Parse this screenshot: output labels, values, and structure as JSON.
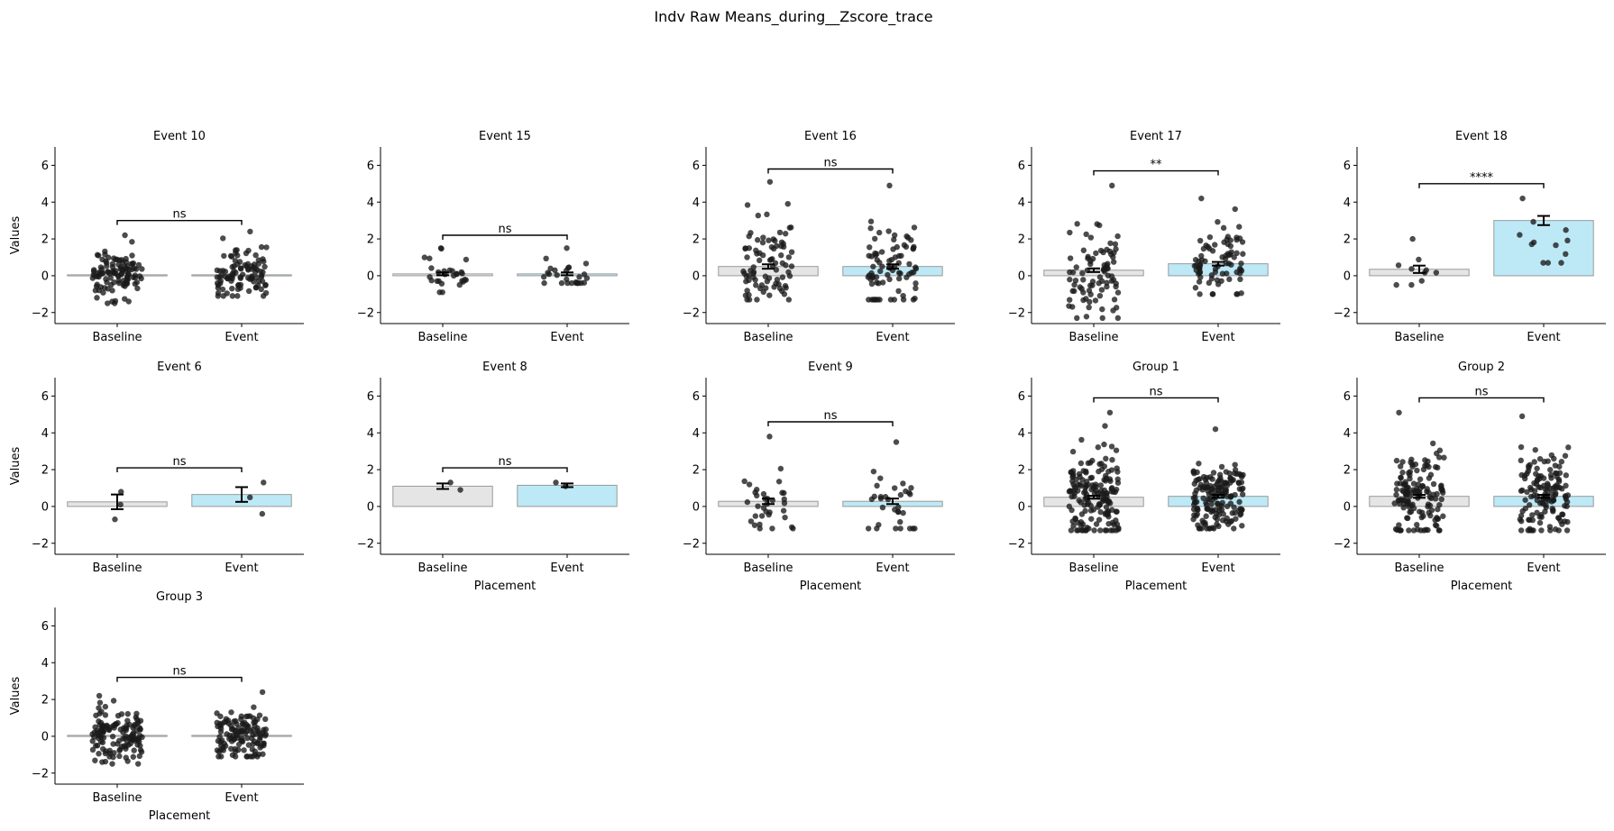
{
  "figure": {
    "title": "Indv Raw Means_during__Zscore_trace"
  },
  "colors": {
    "baseline_bar": "#e5e5e5",
    "event_bar": "#bde9f6",
    "bar_edge": "#9a9a9a",
    "points": "#1a1a1a"
  },
  "chart_data": {
    "type": "bar",
    "categories": [
      "Baseline",
      "Event"
    ],
    "xlabel": "Placement",
    "ylabel": "Values",
    "ylim": [
      -2.6,
      7.0
    ],
    "yticks": [
      -2,
      0,
      2,
      4,
      6
    ],
    "panels": [
      {
        "title": "Event 10",
        "means": [
          0.05,
          0.05
        ],
        "sem": [
          0.05,
          0.05
        ],
        "sig": "ns",
        "bracket_y": 3.0,
        "n": [
          110,
          100
        ],
        "spread": [
          [
            -1.5,
            2.2
          ],
          [
            -1.1,
            2.4
          ]
        ],
        "ylabel": "Values",
        "xlabel": ""
      },
      {
        "title": "Event 15",
        "means": [
          0.1,
          0.1
        ],
        "sem": [
          0.08,
          0.08
        ],
        "sig": "ns",
        "bracket_y": 2.2,
        "n": [
          28,
          26
        ],
        "spread": [
          [
            -0.9,
            1.5
          ],
          [
            -0.4,
            1.5
          ]
        ],
        "ylabel": "",
        "xlabel": ""
      },
      {
        "title": "Event 16",
        "means": [
          0.5,
          0.5
        ],
        "sem": [
          0.12,
          0.12
        ],
        "sig": "ns",
        "bracket_y": 5.8,
        "n": [
          85,
          80
        ],
        "spread": [
          [
            -1.3,
            5.1
          ],
          [
            -1.3,
            4.9
          ]
        ],
        "ylabel": "",
        "xlabel": ""
      },
      {
        "title": "Event 17",
        "means": [
          0.3,
          0.65
        ],
        "sem": [
          0.1,
          0.1
        ],
        "sig": "**",
        "bracket_y": 5.7,
        "n": [
          85,
          80
        ],
        "spread": [
          [
            -2.3,
            4.9
          ],
          [
            -1.0,
            4.2
          ]
        ],
        "ylabel": "",
        "xlabel": ""
      },
      {
        "title": "Event 18",
        "means": [
          0.35,
          3.0
        ],
        "sem": [
          0.2,
          0.25
        ],
        "sig": "****",
        "bracket_y": 5.0,
        "n": [
          10,
          12
        ],
        "spread": [
          [
            -0.5,
            2.0
          ],
          [
            0.7,
            4.2
          ]
        ],
        "ylabel": "",
        "xlabel": ""
      },
      {
        "title": "Event 6",
        "means": [
          0.25,
          0.65
        ],
        "sem": [
          0.4,
          0.4
        ],
        "sig": "ns",
        "bracket_y": 2.1,
        "n": [
          3,
          3
        ],
        "spread": [
          [
            -0.7,
            0.8
          ],
          [
            -0.4,
            1.3
          ]
        ],
        "ylabel": "Values",
        "xlabel": ""
      },
      {
        "title": "Event 8",
        "means": [
          1.1,
          1.15
        ],
        "sem": [
          0.15,
          0.1
        ],
        "sig": "ns",
        "bracket_y": 2.1,
        "n": [
          2,
          2
        ],
        "spread": [
          [
            0.9,
            1.3
          ],
          [
            1.1,
            1.3
          ]
        ],
        "ylabel": "",
        "xlabel": "Placement"
      },
      {
        "title": "Event 9",
        "means": [
          0.28,
          0.28
        ],
        "sem": [
          0.15,
          0.15
        ],
        "sig": "ns",
        "bracket_y": 4.6,
        "n": [
          34,
          32
        ],
        "spread": [
          [
            -1.2,
            3.8
          ],
          [
            -1.2,
            3.5
          ]
        ],
        "ylabel": "",
        "xlabel": "Placement"
      },
      {
        "title": "Group 1",
        "means": [
          0.5,
          0.55
        ],
        "sem": [
          0.08,
          0.08
        ],
        "sig": "ns",
        "bracket_y": 5.9,
        "n": [
          170,
          165
        ],
        "spread": [
          [
            -1.3,
            5.1
          ],
          [
            -1.2,
            4.2
          ]
        ],
        "ylabel": "",
        "xlabel": "Placement"
      },
      {
        "title": "Group 2",
        "means": [
          0.55,
          0.55
        ],
        "sem": [
          0.08,
          0.08
        ],
        "sig": "ns",
        "bracket_y": 5.9,
        "n": [
          140,
          135
        ],
        "spread": [
          [
            -1.3,
            5.1
          ],
          [
            -1.3,
            4.9
          ]
        ],
        "ylabel": "",
        "xlabel": "Placement"
      },
      {
        "title": "Group 3",
        "means": [
          0.05,
          0.05
        ],
        "sem": [
          0.04,
          0.04
        ],
        "sig": "ns",
        "bracket_y": 3.2,
        "n": [
          130,
          125
        ],
        "spread": [
          [
            -1.5,
            2.2
          ],
          [
            -1.1,
            2.4
          ]
        ],
        "ylabel": "Values",
        "xlabel": "Placement"
      }
    ]
  }
}
